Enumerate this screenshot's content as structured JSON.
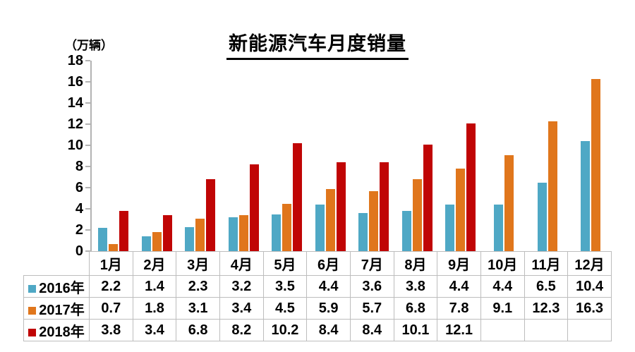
{
  "title": "新能源汽车月度销量",
  "unit_label": "（万辆）",
  "chart_data": {
    "type": "bar",
    "title": "新能源汽车月度销量",
    "ylabel": "（万辆）",
    "xlabel": "",
    "ylim": [
      0,
      18
    ],
    "y_ticks": [
      0,
      2,
      4,
      6,
      8,
      10,
      12,
      14,
      16,
      18
    ],
    "grid": false,
    "legend_position": "table-left",
    "categories": [
      "1月",
      "2月",
      "3月",
      "4月",
      "5月",
      "6月",
      "7月",
      "8月",
      "9月",
      "10月",
      "11月",
      "12月"
    ],
    "series": [
      {
        "name": "2016年",
        "color": "#4FA8C5",
        "values": [
          2.2,
          1.4,
          2.3,
          3.2,
          3.5,
          4.4,
          3.6,
          3.8,
          4.4,
          4.4,
          6.5,
          10.4
        ]
      },
      {
        "name": "2017年",
        "color": "#E0761C",
        "values": [
          0.7,
          1.8,
          3.1,
          3.4,
          4.5,
          5.9,
          5.7,
          6.8,
          7.8,
          9.1,
          12.3,
          16.3
        ]
      },
      {
        "name": "2018年",
        "color": "#C00505",
        "values": [
          3.8,
          3.4,
          6.8,
          8.2,
          10.2,
          8.4,
          8.4,
          10.1,
          12.1,
          null,
          null,
          null
        ]
      }
    ]
  },
  "axis_color": "#b3b3b3",
  "table_border_color": "#bdbdbd"
}
